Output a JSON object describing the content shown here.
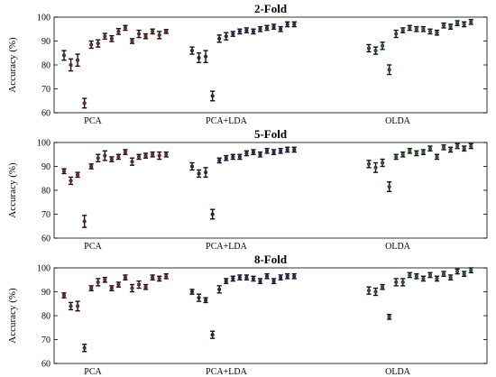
{
  "chart_data": [
    {
      "type": "scatter",
      "title": "2-Fold",
      "ylabel": "Accuracy (%)",
      "ylim": [
        60,
        100
      ],
      "yticks": [
        60,
        70,
        80,
        90,
        100
      ],
      "grid": false,
      "error_bars": true,
      "groups": [
        {
          "label": "PCA",
          "color": "#7b2424",
          "means": [
            84,
            80,
            82,
            64,
            88.5,
            89,
            92,
            91,
            94,
            95.5,
            90,
            93,
            92,
            94,
            92.5,
            94
          ],
          "errors": [
            2,
            2.5,
            2.5,
            2,
            1.5,
            1.5,
            1.2,
            1.2,
            1.2,
            1,
            1,
            1.5,
            1,
            1,
            1.5,
            0.8
          ]
        },
        {
          "label": "PCA+LDA",
          "color": "#1f2a5a",
          "means": [
            86,
            83,
            83.5,
            67,
            91,
            92,
            93,
            94,
            94.5,
            94,
            95,
            95.5,
            96,
            95,
            97,
            97
          ],
          "errors": [
            1.5,
            2,
            2.5,
            2,
            1.5,
            1.5,
            1,
            1,
            1,
            1,
            1,
            1,
            1,
            1,
            1,
            1
          ]
        },
        {
          "label": "OLDA",
          "color": "#2b5a2b",
          "means": [
            87,
            86,
            88,
            78,
            93,
            94.5,
            95.5,
            95,
            95,
            94,
            93.5,
            96.5,
            96,
            97.5,
            97,
            98
          ],
          "errors": [
            1.5,
            1.5,
            1.5,
            2,
            1.5,
            1,
            1,
            1,
            1,
            1,
            1,
            1,
            1,
            1,
            1,
            1
          ]
        }
      ]
    },
    {
      "type": "scatter",
      "title": "5-Fold",
      "ylabel": "Accuracy (%)",
      "ylim": [
        60,
        100
      ],
      "yticks": [
        60,
        70,
        80,
        90,
        100
      ],
      "grid": false,
      "error_bars": true,
      "groups": [
        {
          "label": "PCA",
          "color": "#7b2424",
          "means": [
            88,
            84,
            86.5,
            67,
            90,
            93.5,
            94.5,
            93,
            94,
            96,
            92,
            94,
            94.5,
            95,
            94.5,
            95
          ],
          "errors": [
            1,
            1.5,
            1,
            2.5,
            1,
            1.5,
            2,
            1,
            1,
            1,
            1.5,
            1,
            1,
            1,
            1.5,
            1
          ]
        },
        {
          "label": "PCA+LDA",
          "color": "#1f2a5a",
          "means": [
            90,
            87,
            87.5,
            70,
            92.5,
            93.5,
            94,
            94,
            95.5,
            96,
            95,
            96.5,
            96,
            96.5,
            97,
            97
          ],
          "errors": [
            1.5,
            1.5,
            2,
            2,
            1,
            1,
            1,
            1,
            1,
            1,
            1,
            1,
            1,
            1,
            1,
            1
          ]
        },
        {
          "label": "OLDA",
          "color": "#2b5a2b",
          "means": [
            91,
            89.5,
            91.5,
            81.5,
            94,
            95,
            96.5,
            95.5,
            96,
            97.5,
            94,
            98,
            97,
            98.5,
            97.5,
            98.5
          ],
          "errors": [
            1.5,
            2,
            1.5,
            2,
            1,
            1,
            1,
            1,
            1,
            1,
            1,
            1,
            1,
            1,
            1,
            1
          ]
        }
      ]
    },
    {
      "type": "scatter",
      "title": "8-Fold",
      "ylabel": "Accuracy (%)",
      "ylim": [
        60,
        100
      ],
      "yticks": [
        60,
        70,
        80,
        90,
        100
      ],
      "grid": false,
      "error_bars": true,
      "groups": [
        {
          "label": "PCA",
          "color": "#7b2424",
          "means": [
            88.5,
            84,
            84,
            66.5,
            91.5,
            94,
            95,
            91.5,
            93,
            96,
            91.5,
            93,
            92,
            96,
            95.5,
            96.5
          ],
          "errors": [
            1,
            1.5,
            2,
            1.5,
            1,
            1.5,
            1,
            1,
            1,
            1,
            1.5,
            1.5,
            1,
            1,
            1,
            1
          ]
        },
        {
          "label": "PCA+LDA",
          "color": "#1f2a5a",
          "means": [
            90,
            87.5,
            86.5,
            72,
            91,
            94.5,
            95.5,
            96,
            96,
            95.5,
            94.5,
            96.5,
            94.5,
            96,
            96.5,
            96.5
          ],
          "errors": [
            1,
            1.5,
            1,
            1.5,
            1.5,
            1,
            1,
            1,
            1,
            1,
            1,
            1,
            1,
            1,
            1,
            1
          ]
        },
        {
          "label": "OLDA",
          "color": "#2b5a2b",
          "means": [
            90.5,
            90,
            92,
            79.5,
            94,
            94,
            97,
            96.5,
            95.5,
            97,
            95.5,
            97.5,
            96,
            98.5,
            97.5,
            99
          ],
          "errors": [
            1.5,
            1.5,
            1,
            1,
            1.5,
            1.5,
            1,
            1,
            1,
            1,
            1,
            1,
            1,
            1,
            1,
            1
          ]
        }
      ]
    }
  ]
}
